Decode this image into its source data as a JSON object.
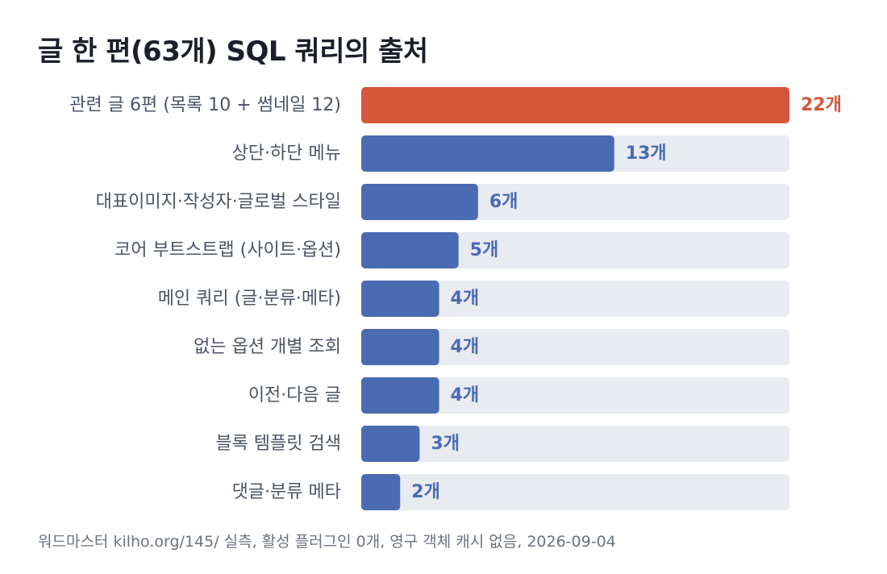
{
  "chart_data": {
    "type": "bar",
    "orientation": "horizontal",
    "title": "글 한 편(63개) SQL 쿼리의 출처",
    "categories": [
      "관련 글 6편 (목록 10 + 썸네일 12)",
      "상단·하단 메뉴",
      "대표이미지·작성자·글로벌 스타일",
      "코어 부트스트랩 (사이트·옵션)",
      "메인 쿼리 (글·분류·메타)",
      "없는 옵션 개별 조회",
      "이전·다음 글",
      "블록 템플릿 검색",
      "댓글·분류 메타"
    ],
    "values": [
      22,
      13,
      6,
      5,
      4,
      4,
      4,
      3,
      2
    ],
    "value_labels": [
      "22개",
      "13개",
      "6개",
      "5개",
      "4개",
      "4개",
      "4개",
      "3개",
      "2개"
    ],
    "xlim": [
      0,
      22
    ],
    "highlight_index": 0,
    "colors": {
      "highlight": "#d4573b",
      "bar": "#4a6bb2",
      "track": "#e8ebf0"
    },
    "grid": false,
    "legend": "none"
  },
  "footer": {
    "source": "워드마스터 kilho.org/145/ 실측, 활성 플러그인 0개, 영구 객체 캐시 없음, 2026-09-04"
  }
}
